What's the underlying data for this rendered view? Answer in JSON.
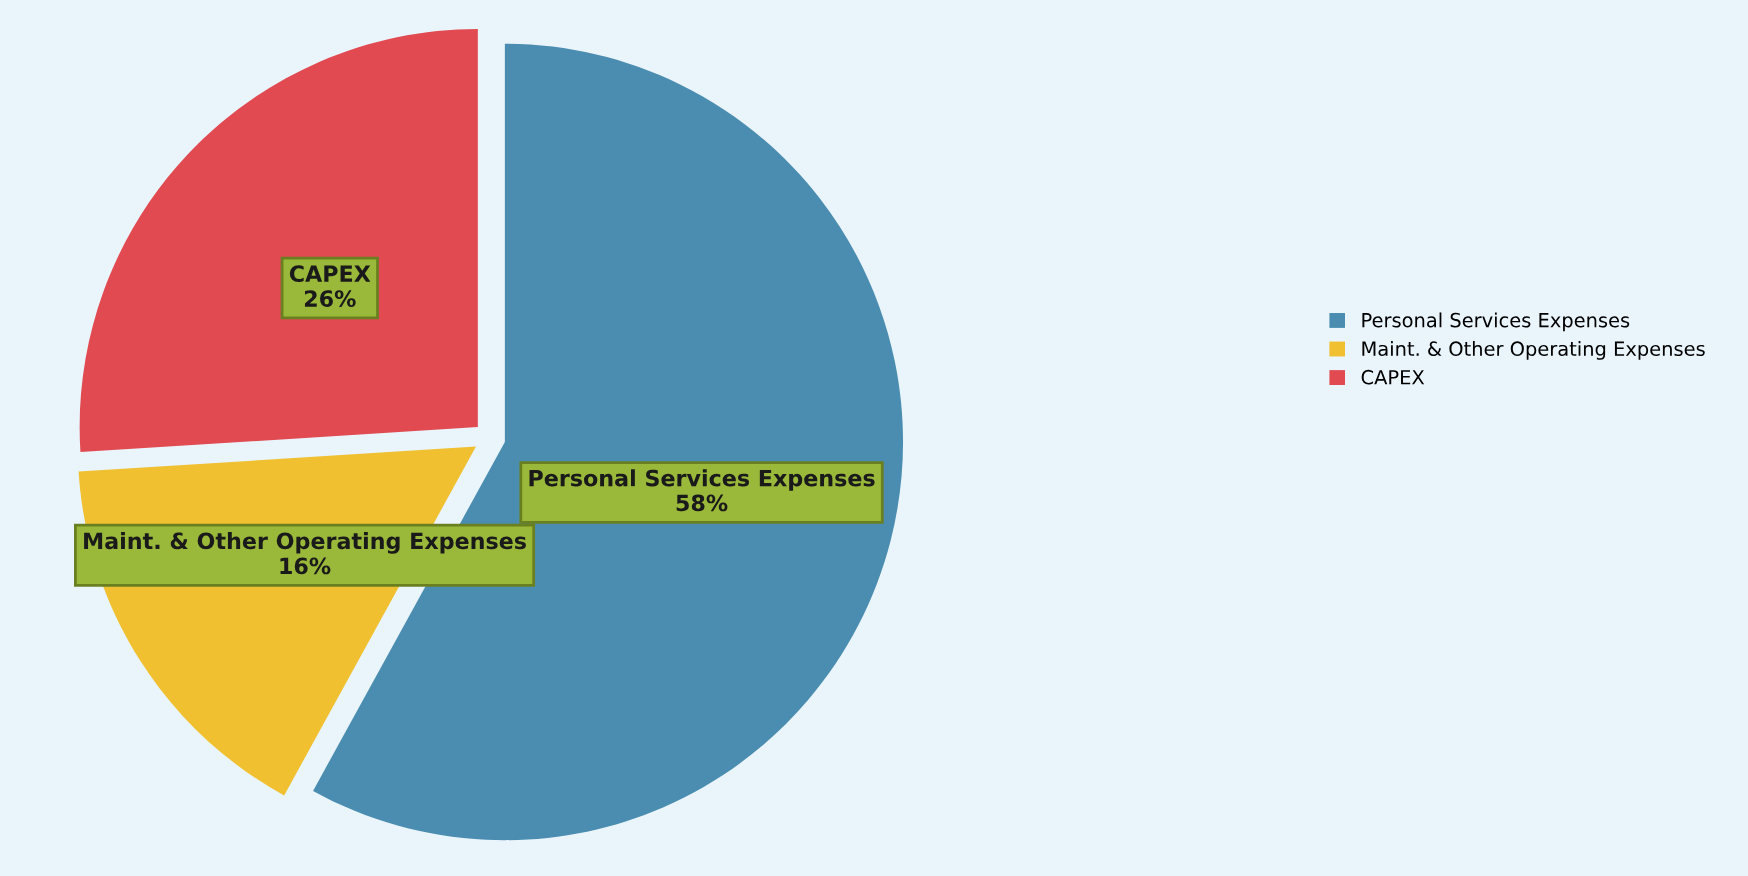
{
  "chart_data": {
    "type": "pie",
    "categories": [
      "Personal Services Expenses",
      "Maint. & Other Operating Expenses",
      "CAPEX"
    ],
    "values": [
      58,
      16,
      26
    ],
    "colors": [
      "#4a8db0",
      "#f0c030",
      "#e04a50"
    ],
    "value_labels": [
      "58%",
      "16%",
      "26%"
    ],
    "legend": "right"
  }
}
